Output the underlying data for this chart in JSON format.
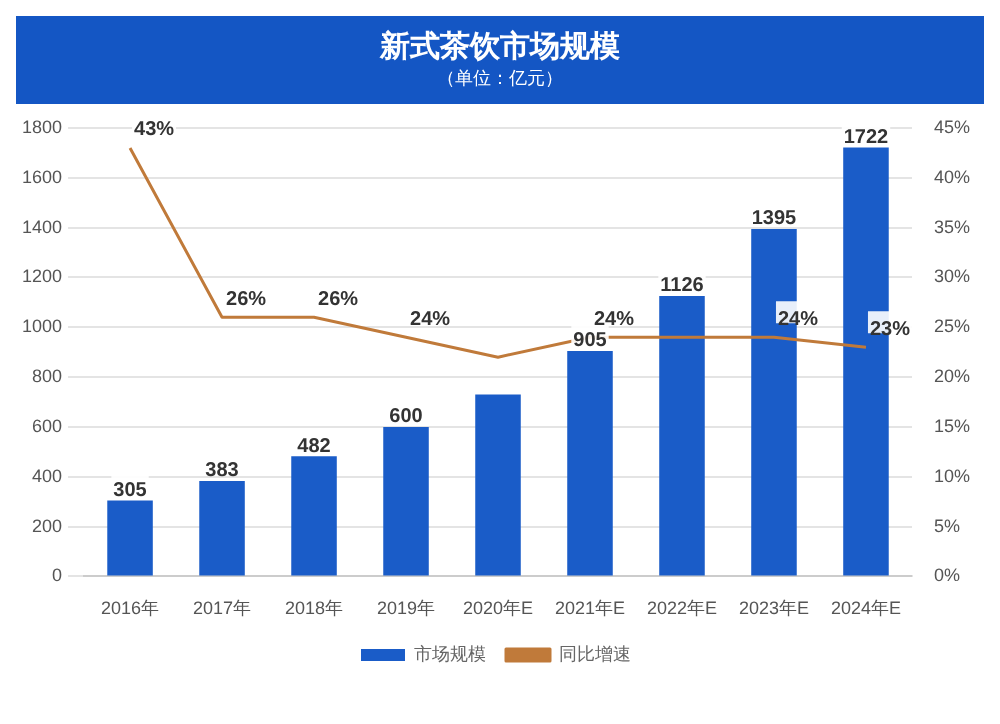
{
  "chart_data": {
    "type": "bar",
    "title": "新式茶饮市场规模",
    "subtitle": "（单位：亿元）",
    "categories": [
      "2016年",
      "2017年",
      "2018年",
      "2019年",
      "2020年E",
      "2021年E",
      "2022年E",
      "2023年E",
      "2024年E"
    ],
    "series": [
      {
        "name": "市场规模",
        "color": "#1a5cc8",
        "values": [
          305,
          383,
          482,
          600,
          730,
          905,
          1126,
          1395,
          1722
        ],
        "value_labels": [
          "305",
          "383",
          "482",
          "600",
          null,
          "905",
          "1126",
          "1395",
          "1722"
        ]
      },
      {
        "name": "同比增速",
        "type": "line",
        "axis": "y2",
        "color": "#c07a3a",
        "values": [
          43,
          26,
          26,
          24,
          22,
          24,
          24,
          24,
          23
        ],
        "value_labels": [
          "43%",
          "26%",
          "26%",
          "24%",
          null,
          "24%",
          null,
          "24%",
          "23%"
        ]
      }
    ],
    "ylim": [
      0,
      1800
    ],
    "yticks": [
      0,
      200,
      400,
      600,
      800,
      1000,
      1200,
      1400,
      1600,
      1800
    ],
    "y2lim": [
      0,
      45
    ],
    "y2ticks": [
      {
        "value": 0,
        "label": "0%"
      },
      {
        "value": 5,
        "label": "5%"
      },
      {
        "value": 10,
        "label": "10%"
      },
      {
        "value": 15,
        "label": "15%"
      },
      {
        "value": 20,
        "label": "20%"
      },
      {
        "value": 25,
        "label": "25%"
      },
      {
        "value": 30,
        "label": "30%"
      },
      {
        "value": 35,
        "label": "35%"
      },
      {
        "value": 40,
        "label": "40%"
      },
      {
        "value": 45,
        "label": "45%"
      }
    ],
    "grid": "y",
    "legend": "bottom",
    "marker": "none",
    "line_style": "solid"
  }
}
